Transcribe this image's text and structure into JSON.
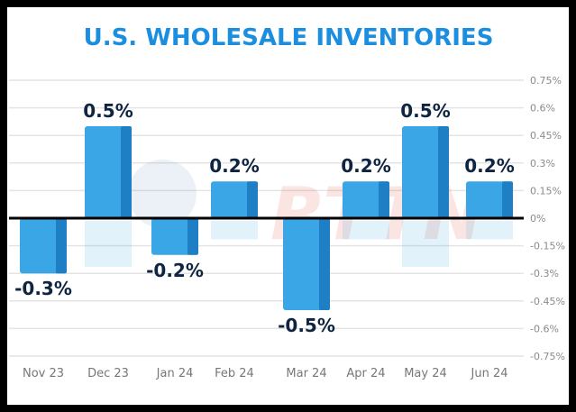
{
  "chart_data": {
    "type": "bar",
    "title": "U.S. WHOLESALE INVENTORIES",
    "categories": [
      "Nov 23",
      "Dec 23",
      "Jan 24",
      "Feb 24",
      "Mar 24",
      "Apr 24",
      "May 24",
      "Jun 24"
    ],
    "values": [
      -0.3,
      0.5,
      -0.2,
      0.2,
      -0.5,
      0.2,
      0.5,
      0.2
    ],
    "data_labels": [
      "-0.3%",
      "0.5%",
      "-0.2%",
      "0.2%",
      "-0.5%",
      "0.2%",
      "0.5%",
      "0.2%"
    ],
    "yticks": [
      "0.75%",
      "0.6%",
      "0.45%",
      "0.3%",
      "0.15%",
      "0%",
      "-0.15%",
      "-0.3%",
      "-0.45%",
      "-0.6%",
      "-0.75%"
    ],
    "ytick_values": [
      0.75,
      0.6,
      0.45,
      0.3,
      0.15,
      0,
      -0.15,
      -0.3,
      -0.45,
      -0.6,
      -0.75
    ],
    "ylim": [
      -0.75,
      0.75
    ],
    "xlabel": "",
    "ylabel": "",
    "grid": true,
    "watermark": "RTTNews",
    "colors": {
      "title": "#1b8ee0",
      "bar": "#3aa6e6",
      "bar_dark": "#1f7fc4",
      "label": "#0f2440",
      "tick": "#8a8a8a"
    }
  }
}
